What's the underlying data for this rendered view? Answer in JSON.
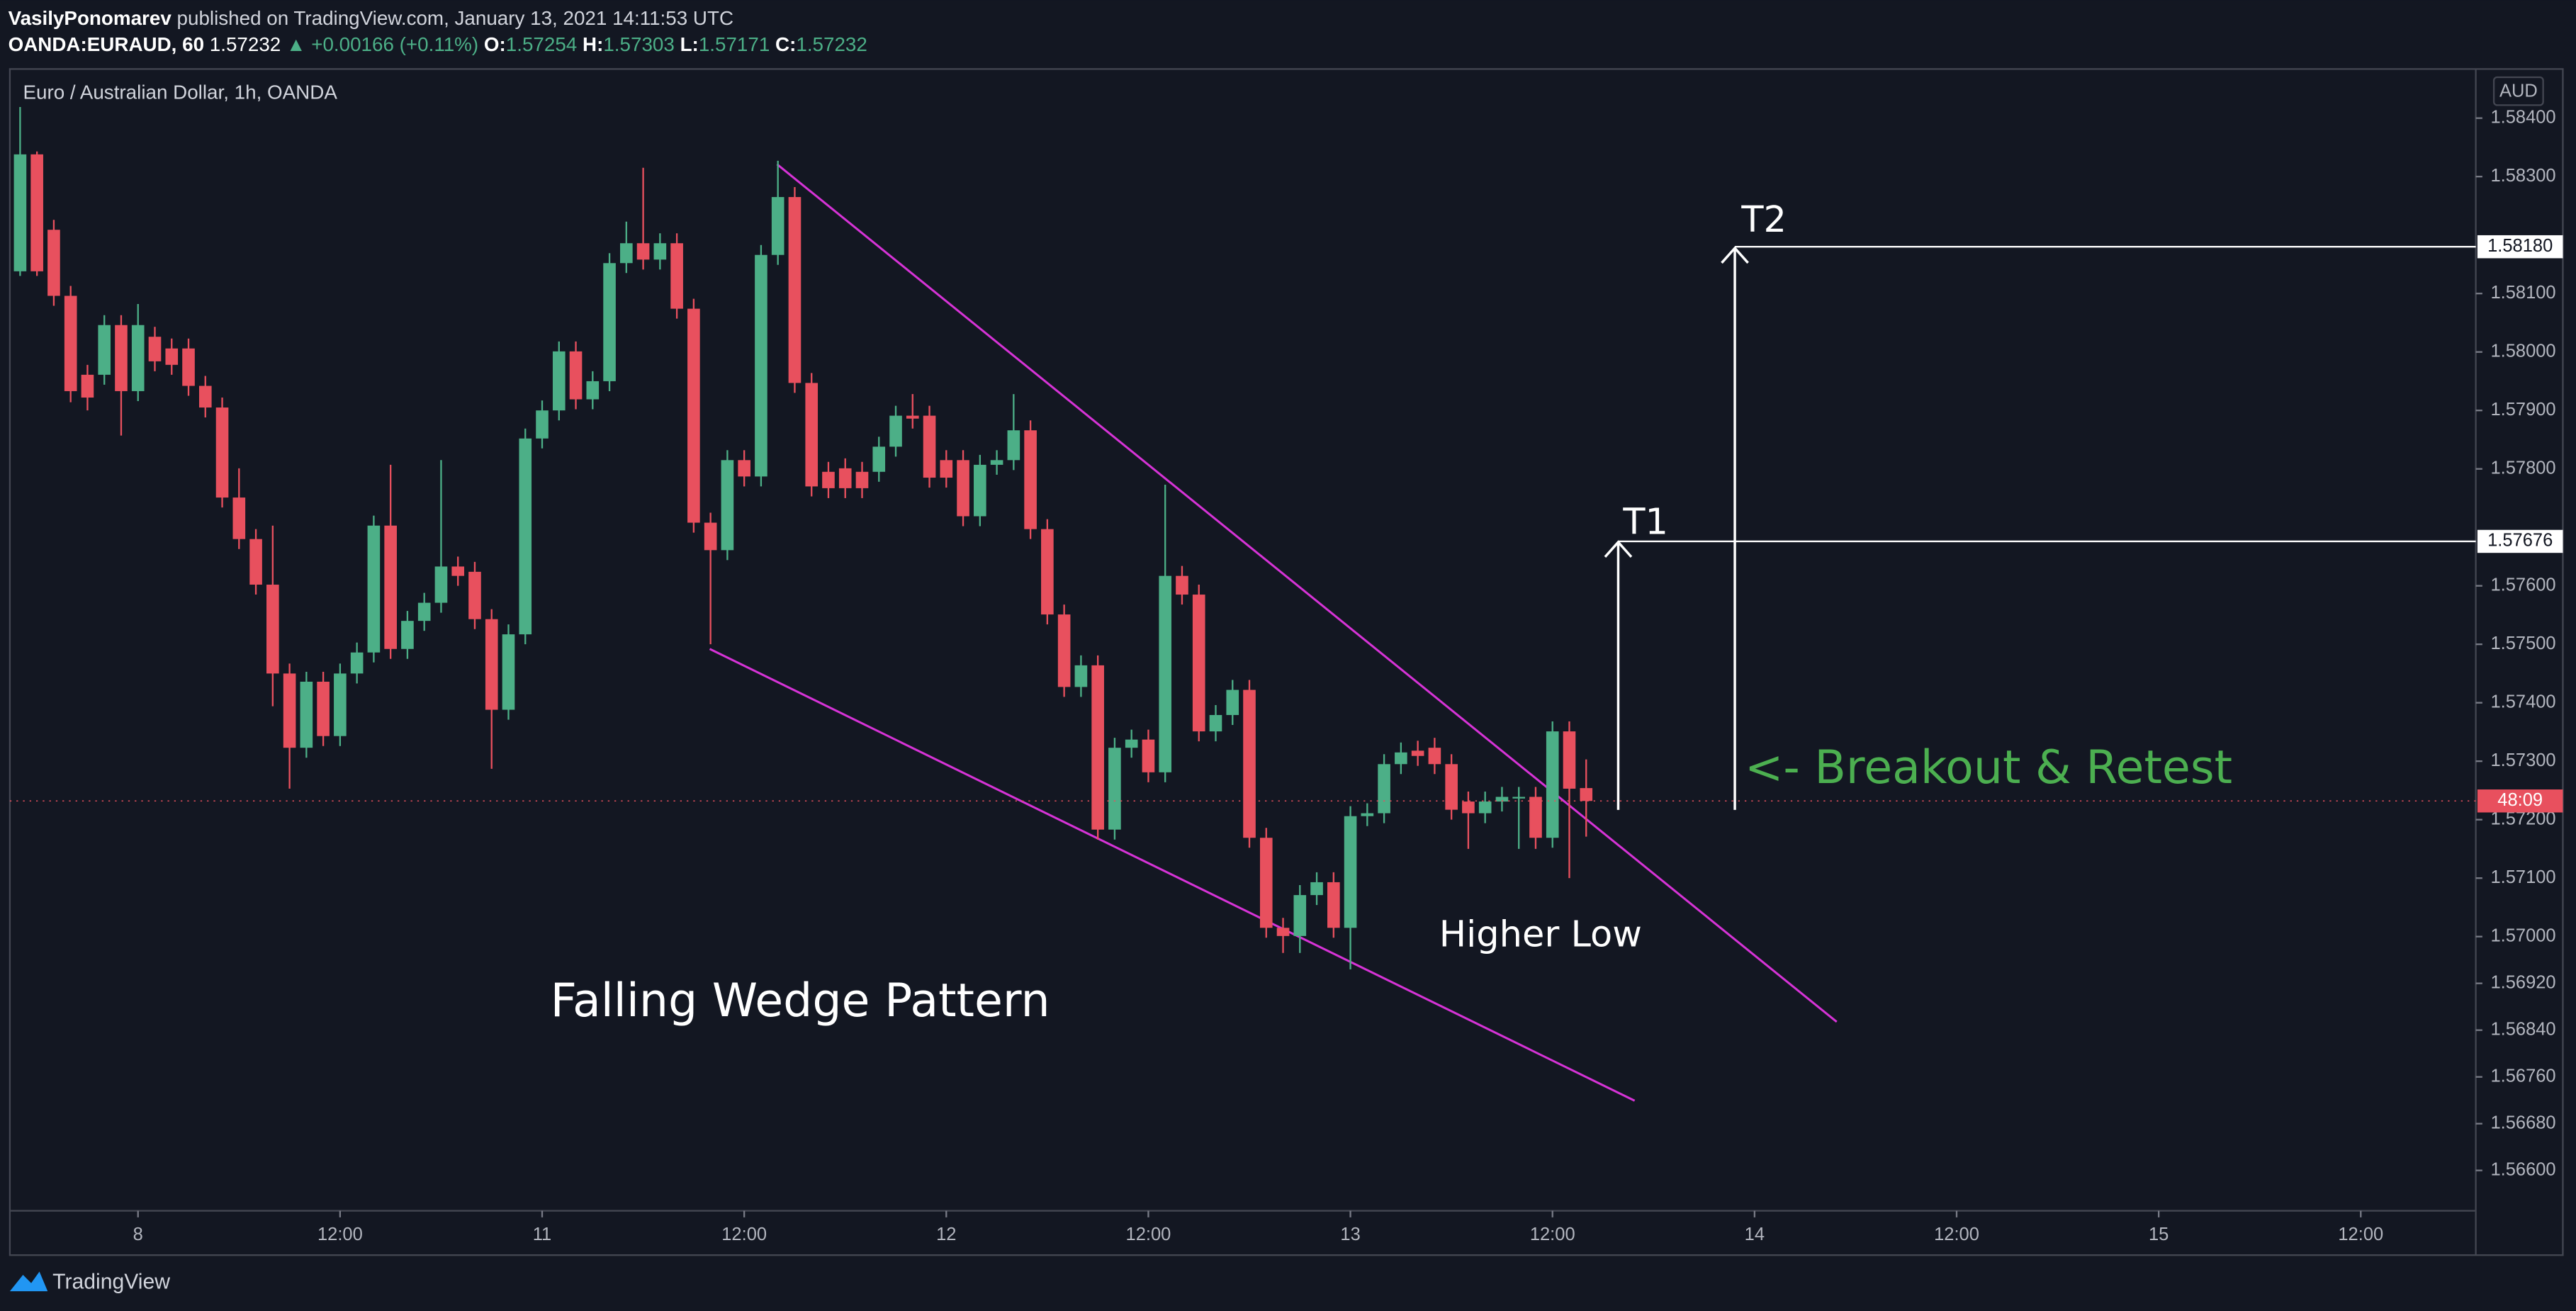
{
  "chart_data": {
    "type": "candlestick",
    "header": {
      "author": "VasilyPonomarev",
      "published": "published on TradingView.com, January 13, 2021 14:11:53 UTC",
      "symbol": "OANDA:EURAUD, 60",
      "last": "1.57232",
      "change": "▲ +0.00166 (+0.11%)",
      "o_label": "O:",
      "o": "1.57254",
      "h_label": "H:",
      "h": "1.57303",
      "l_label": "L:",
      "l": "1.57171",
      "c_label": "C:",
      "c": "1.57232"
    },
    "title": "Euro / Australian Dollar, 1h, OANDA",
    "currency": "AUD",
    "countdown": "48:09",
    "brand": "TradingView",
    "up_color": "#4caf87",
    "down_color": "#e8505e",
    "annotations": {
      "t2": "T2",
      "t1": "T1",
      "breakout": "<- Breakout & Retest",
      "higher_low": "Higher Low",
      "pattern": "Falling Wedge Pattern"
    },
    "levels": [
      {
        "value": 1.5818,
        "label": "1.58180"
      },
      {
        "value": 1.57676,
        "label": "1.57676"
      }
    ],
    "x": [
      -7,
      -6,
      -5,
      -4,
      -3,
      -2,
      -1,
      0,
      1,
      2,
      3,
      4,
      5,
      6,
      7,
      8,
      9,
      10,
      11,
      12,
      13,
      14,
      15,
      16,
      17,
      18,
      19,
      20,
      21,
      22,
      23,
      24,
      25,
      26,
      27,
      28,
      29,
      30,
      31,
      32,
      33,
      34,
      35,
      36,
      37,
      38,
      39,
      40,
      41,
      42,
      43,
      44,
      45,
      46,
      47,
      48,
      49,
      50,
      51,
      52,
      53,
      54,
      55,
      56,
      57,
      58,
      59,
      60,
      61,
      62,
      63,
      64,
      65,
      66,
      67,
      68,
      69,
      70,
      71,
      72,
      73,
      74,
      75,
      76,
      77,
      78,
      79,
      80,
      81,
      82,
      83,
      84,
      85,
      86
    ],
    "opens": [
      1.58138,
      1.58338,
      1.58209,
      1.58096,
      1.57961,
      1.57961,
      1.58046,
      1.57933,
      1.58026,
      1.58006,
      1.58006,
      1.57942,
      1.57905,
      1.57751,
      1.5768,
      1.57602,
      1.5745,
      1.57323,
      1.57436,
      1.57343,
      1.5745,
      1.57486,
      1.57703,
      1.57492,
      1.5754,
      1.57571,
      1.57633,
      1.57624,
      1.57543,
      1.57388,
      1.57517,
      1.57852,
      1.579,
      1.58001,
      1.57919,
      1.5795,
      1.58152,
      1.58186,
      1.58158,
      1.58186,
      1.58074,
      1.57708,
      1.57661,
      1.57815,
      1.57787,
      1.58166,
      1.58265,
      1.57947,
      1.57795,
      1.57801,
      1.57795,
      1.57795,
      1.57838,
      1.57891,
      1.57891,
      1.57815,
      1.57815,
      1.57719,
      1.57807,
      1.57815,
      1.57866,
      1.57697,
      1.57551,
      1.57427,
      1.57464,
      1.57183,
      1.57323,
      1.57337,
      1.57281,
      1.57617,
      1.57585,
      1.57351,
      1.57379,
      1.57422,
      1.57169,
      1.57015,
      1.57001,
      1.57071,
      1.57093,
      1.57015,
      1.57206,
      1.57211,
      1.57295,
      1.57318,
      1.57323,
      1.57295,
      1.57231,
      1.57211,
      1.57231,
      1.57239,
      1.57239,
      1.57169,
      1.57351,
      1.57254
    ],
    "highs": [
      1.58419,
      1.58343,
      1.58226,
      1.58113,
      1.57978,
      1.58063,
      1.58063,
      1.58082,
      1.58043,
      1.58023,
      1.58023,
      1.57959,
      1.57922,
      1.57801,
      1.57697,
      1.57703,
      1.57467,
      1.57453,
      1.57453,
      1.57467,
      1.57503,
      1.5772,
      1.57807,
      1.57557,
      1.57588,
      1.57815,
      1.5765,
      1.57641,
      1.5756,
      1.57534,
      1.57869,
      1.57917,
      1.58018,
      1.58018,
      1.57967,
      1.58169,
      1.58223,
      1.58315,
      1.58203,
      1.58203,
      1.58091,
      1.57725,
      1.57832,
      1.57832,
      1.58183,
      1.58327,
      1.58282,
      1.57964,
      1.57812,
      1.57818,
      1.57812,
      1.57855,
      1.57908,
      1.57928,
      1.57908,
      1.57832,
      1.57832,
      1.57824,
      1.57832,
      1.57928,
      1.57883,
      1.57714,
      1.57568,
      1.57481,
      1.57481,
      1.5734,
      1.57354,
      1.57354,
      1.57773,
      1.57634,
      1.57602,
      1.57396,
      1.57439,
      1.57439,
      1.57186,
      1.57032,
      1.57088,
      1.5711,
      1.5711,
      1.57223,
      1.57228,
      1.57312,
      1.57332,
      1.57335,
      1.5734,
      1.57312,
      1.57248,
      1.57248,
      1.57256,
      1.57256,
      1.57256,
      1.57368,
      1.57368,
      1.57303
    ],
    "lows": [
      1.5813,
      1.5813,
      1.58079,
      1.57914,
      1.579,
      1.57944,
      1.57857,
      1.57916,
      1.57967,
      1.57961,
      1.57925,
      1.57888,
      1.57734,
      1.57663,
      1.57585,
      1.57394,
      1.57253,
      1.57306,
      1.57326,
      1.57326,
      1.57433,
      1.57469,
      1.57475,
      1.57475,
      1.57523,
      1.57554,
      1.576,
      1.57526,
      1.57287,
      1.57371,
      1.575,
      1.57835,
      1.57883,
      1.57902,
      1.57902,
      1.57933,
      1.58135,
      1.58141,
      1.58141,
      1.58057,
      1.57691,
      1.575,
      1.57644,
      1.5777,
      1.5777,
      1.58149,
      1.5793,
      1.57753,
      1.5775,
      1.5775,
      1.5775,
      1.57778,
      1.57821,
      1.57869,
      1.57768,
      1.57768,
      1.57702,
      1.57702,
      1.5779,
      1.57798,
      1.5768,
      1.57534,
      1.5741,
      1.5741,
      1.57166,
      1.57166,
      1.57306,
      1.57264,
      1.57264,
      1.57568,
      1.57334,
      1.57334,
      1.57362,
      1.57152,
      1.56998,
      1.56972,
      1.56972,
      1.57054,
      1.56998,
      1.56944,
      1.57189,
      1.57194,
      1.57278,
      1.57292,
      1.57278,
      1.572,
      1.5715,
      1.57194,
      1.57214,
      1.5715,
      1.5715,
      1.57152,
      1.571,
      1.57171
    ],
    "closes": [
      1.58338,
      1.58138,
      1.58096,
      1.57933,
      1.57922,
      1.58046,
      1.57933,
      1.58046,
      1.57984,
      1.57978,
      1.57942,
      1.57905,
      1.57751,
      1.5768,
      1.57602,
      1.5745,
      1.57323,
      1.57436,
      1.57343,
      1.5745,
      1.57486,
      1.57703,
      1.57492,
      1.5754,
      1.57571,
      1.57633,
      1.57617,
      1.57543,
      1.57388,
      1.57517,
      1.57852,
      1.579,
      1.58001,
      1.57919,
      1.5795,
      1.58152,
      1.58186,
      1.58158,
      1.58186,
      1.58074,
      1.57708,
      1.57661,
      1.57815,
      1.57787,
      1.58166,
      1.58265,
      1.57947,
      1.5777,
      1.57767,
      1.57767,
      1.57767,
      1.57838,
      1.57891,
      1.57886,
      1.57785,
      1.57785,
      1.57719,
      1.57807,
      1.57815,
      1.57866,
      1.57697,
      1.57551,
      1.57427,
      1.57464,
      1.57183,
      1.57323,
      1.57337,
      1.57281,
      1.57617,
      1.57585,
      1.57351,
      1.57379,
      1.57422,
      1.57169,
      1.57015,
      1.57001,
      1.57071,
      1.57093,
      1.57015,
      1.57206,
      1.57211,
      1.57295,
      1.57315,
      1.57309,
      1.57295,
      1.57217,
      1.57211,
      1.57231,
      1.57239,
      1.57239,
      1.57169,
      1.57351,
      1.57253,
      1.57232
    ],
    "xlim": [
      -7.61,
      138.83
    ],
    "xticks": [
      {
        "value": 0,
        "label": "8"
      },
      {
        "value": 12,
        "label": "12:00"
      },
      {
        "value": 24,
        "label": "11"
      },
      {
        "value": 36,
        "label": "12:00"
      },
      {
        "value": 48,
        "label": "12"
      },
      {
        "value": 60,
        "label": "12:00"
      },
      {
        "value": 72,
        "label": "13"
      },
      {
        "value": 84,
        "label": "12:00"
      },
      {
        "value": 96,
        "label": "14"
      },
      {
        "value": 108,
        "label": "12:00"
      },
      {
        "value": 120,
        "label": "15"
      },
      {
        "value": 132,
        "label": "12:00"
      }
    ],
    "ylim": [
      1.56531,
      1.58484
    ],
    "yticks": [
      {
        "value": 1.584,
        "label": "1.58400"
      },
      {
        "value": 1.583,
        "label": "1.58300"
      },
      {
        "value": 1.581,
        "label": "1.58100"
      },
      {
        "value": 1.58,
        "label": "1.58000"
      },
      {
        "value": 1.579,
        "label": "1.57900"
      },
      {
        "value": 1.578,
        "label": "1.57800"
      },
      {
        "value": 1.576,
        "label": "1.57600"
      },
      {
        "value": 1.575,
        "label": "1.57500"
      },
      {
        "value": 1.574,
        "label": "1.57400"
      },
      {
        "value": 1.573,
        "label": "1.57300"
      },
      {
        "value": 1.572,
        "label": "1.57200"
      },
      {
        "value": 1.571,
        "label": "1.57100"
      },
      {
        "value": 1.57,
        "label": "1.57000"
      },
      {
        "value": 1.5692,
        "label": "1.56920"
      },
      {
        "value": 1.5684,
        "label": "1.56840"
      },
      {
        "value": 1.5676,
        "label": "1.56760"
      },
      {
        "value": 1.5668,
        "label": "1.56680"
      },
      {
        "value": 1.566,
        "label": "1.56600"
      }
    ]
  }
}
